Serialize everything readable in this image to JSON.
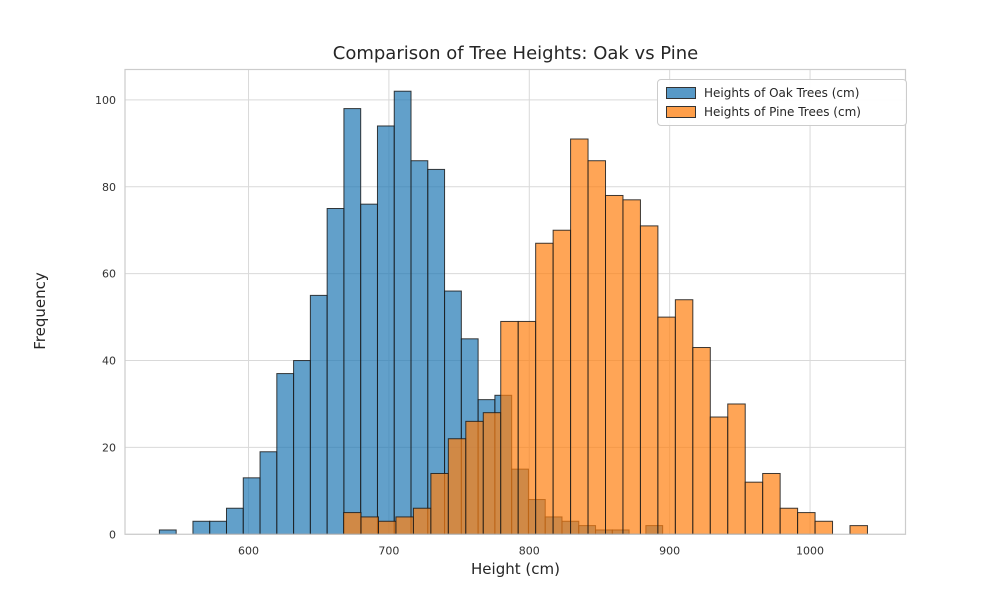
{
  "chart_data": {
    "type": "bar",
    "subtype": "overlaid-histogram",
    "title": "Comparison of Tree Heights: Oak vs Pine",
    "xlabel": "Height (cm)",
    "ylabel": "Frequency",
    "x_ticks": [
      600,
      700,
      800,
      900,
      1000
    ],
    "y_ticks": [
      0,
      20,
      40,
      60,
      80,
      100
    ],
    "xlim": [
      512,
      1068
    ],
    "ylim": [
      0,
      107
    ],
    "grid": true,
    "legend_position": "top-right",
    "background_color": "#ffffff",
    "grid_color": "#d9d9d9",
    "spine_color": "#cccccc",
    "bar_edge_color": "#1a1a1a",
    "bar_alpha": 0.7,
    "series": [
      {
        "name": "Heights of Oak Trees (cm)",
        "color": "#1f77b4",
        "bin_start": 536.5,
        "bin_width": 11.95,
        "counts": [
          1,
          0,
          3,
          3,
          6,
          13,
          19,
          37,
          40,
          55,
          75,
          98,
          76,
          94,
          102,
          86,
          84,
          56,
          45,
          31,
          32,
          15,
          8,
          4,
          3,
          2,
          1,
          1,
          0,
          2
        ]
      },
      {
        "name": "Heights of Pine Trees (cm)",
        "color": "#ff7f0e",
        "bin_start": 667.7,
        "bin_width": 12.44,
        "counts": [
          5,
          4,
          3,
          4,
          6,
          14,
          22,
          26,
          28,
          49,
          49,
          67,
          70,
          91,
          86,
          78,
          77,
          71,
          50,
          54,
          43,
          27,
          30,
          12,
          14,
          6,
          5,
          3,
          0,
          2
        ]
      }
    ]
  }
}
